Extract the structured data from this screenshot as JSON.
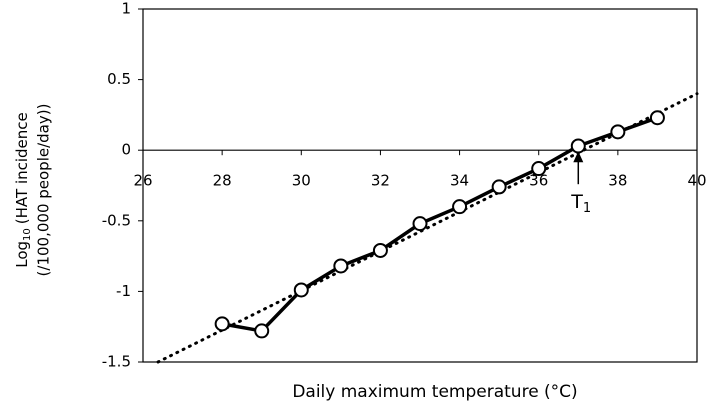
{
  "chart_data": {
    "type": "line",
    "x": [
      28,
      29,
      30,
      31,
      32,
      33,
      34,
      35,
      36,
      37,
      38,
      39
    ],
    "series": [
      {
        "color": "#000000",
        "values": [
          -1.23,
          -1.28,
          -0.99,
          -0.82,
          -0.71,
          -0.52,
          -0.4,
          -0.26,
          -0.13,
          0.03,
          0.13,
          0.23
        ]
      }
    ],
    "trendline": {
      "x": [
        26.38,
        40
      ],
      "values": [
        -1.5,
        0.4
      ],
      "color": "#000000"
    },
    "xlim": [
      26,
      40
    ],
    "xticks": [
      26,
      28,
      30,
      32,
      34,
      36,
      38,
      40
    ],
    "ylim": [
      -1.5,
      1
    ],
    "yticks": [
      1,
      0.5,
      0,
      -0.5,
      -1,
      -1.5
    ],
    "xlabel": "Daily maximum temperature (°C)",
    "ylabel_main": "Log",
    "ylabel_sub": "10",
    "ylabel_rest": "(HAT incidence",
    "ylabel_line2": "(/100,000 people/day))",
    "annotation": {
      "text": "T",
      "sub": "1",
      "x": 37
    }
  }
}
